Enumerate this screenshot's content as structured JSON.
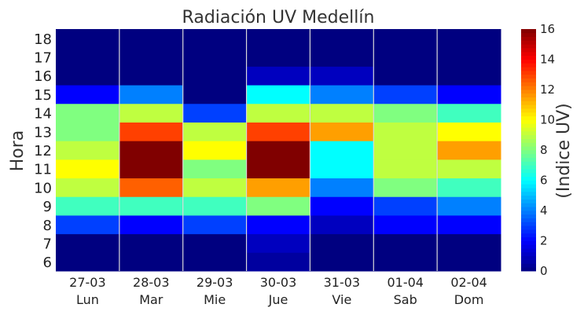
{
  "chart_data": {
    "type": "heatmap",
    "title": "Radiación UV Medellín",
    "ylabel": "Hora",
    "colorbar_label": "(Indice UV)",
    "x_dates": [
      "27-03",
      "28-03",
      "29-03",
      "30-03",
      "31-03",
      "01-04",
      "02-04"
    ],
    "x_days": [
      "Lun",
      "Mar",
      "Mie",
      "Jue",
      "Vie",
      "Sab",
      "Dom"
    ],
    "hours": [
      6,
      7,
      8,
      9,
      10,
      11,
      12,
      13,
      14,
      15,
      16,
      17,
      18
    ],
    "colorbar_ticks": [
      0,
      2,
      4,
      6,
      8,
      10,
      12,
      14,
      16
    ],
    "vmin": 0,
    "vmax": 16,
    "colormap": "jet",
    "grid_color": "#d9d9d9",
    "values": [
      [
        0.0,
        0.0,
        0.0,
        0.5,
        0.0,
        0.0,
        0.0
      ],
      [
        0.0,
        0.0,
        0.0,
        1.0,
        0.0,
        0.0,
        0.0
      ],
      [
        3.0,
        2.0,
        3.0,
        2.0,
        1.0,
        2.0,
        2.0
      ],
      [
        7.0,
        7.0,
        7.0,
        8.0,
        2.0,
        3.0,
        4.0
      ],
      [
        9.0,
        12.5,
        9.0,
        11.5,
        4.0,
        8.0,
        7.0
      ],
      [
        10.0,
        16.0,
        8.0,
        16.0,
        6.0,
        9.0,
        9.0
      ],
      [
        9.0,
        16.0,
        10.0,
        16.0,
        6.0,
        9.0,
        11.5
      ],
      [
        8.0,
        13.0,
        9.0,
        13.0,
        11.5,
        9.0,
        10.0
      ],
      [
        8.0,
        9.0,
        3.0,
        9.0,
        9.0,
        8.0,
        7.0
      ],
      [
        2.0,
        4.0,
        0.0,
        6.0,
        4.0,
        3.0,
        2.0
      ],
      [
        0.0,
        0.0,
        0.0,
        1.0,
        1.0,
        0.0,
        0.0
      ],
      [
        0.0,
        0.0,
        0.0,
        0.0,
        0.0,
        0.0,
        0.0
      ],
      [
        0.0,
        0.0,
        0.0,
        0.0,
        0.0,
        0.0,
        0.0
      ]
    ]
  }
}
